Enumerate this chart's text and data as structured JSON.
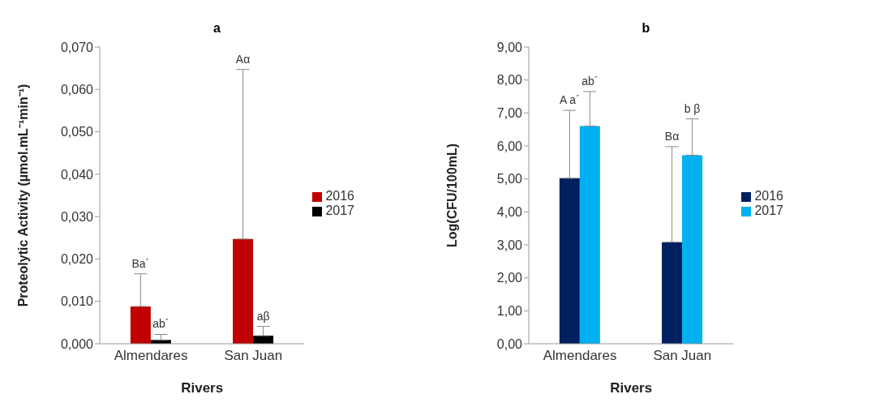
{
  "chart_data": [
    {
      "type": "bar",
      "title": "a",
      "xlabel": "Rivers",
      "ylabel": "Proteolytic Activity (µmol.mL⁻¹min⁻¹)",
      "categories": [
        "Almendares",
        "San Juan"
      ],
      "series": [
        {
          "name": "2016",
          "color": "#c00000",
          "values": [
            0.0088,
            0.0247
          ],
          "errors": [
            [
              0.0088,
              0.0165
            ],
            [
              0.0247,
              0.0647
            ]
          ]
        },
        {
          "name": "2017",
          "color": "#000000",
          "values": [
            0.0009,
            0.0019
          ],
          "errors": [
            [
              0.0009,
              0.0022
            ],
            [
              0.0019,
              0.0041
            ]
          ]
        }
      ],
      "annotations": [
        {
          "text": "Ba´",
          "x": "Almendares",
          "y": 0.0165
        },
        {
          "text": "ab´",
          "x": "Almendares",
          "y": 0.0022
        },
        {
          "text": "Aα",
          "x": "San Juan",
          "y": 0.0647
        },
        {
          "text": "aβ",
          "x": "San Juan",
          "y": 0.0041
        }
      ],
      "ylim": [
        0,
        0.07
      ],
      "yticks": [
        {
          "value": 0,
          "label": "0,000"
        },
        {
          "value": 0.01,
          "label": "0,010"
        },
        {
          "value": 0.02,
          "label": "0,020"
        },
        {
          "value": 0.03,
          "label": "0,030"
        },
        {
          "value": 0.04,
          "label": "0,040"
        },
        {
          "value": 0.05,
          "label": "0,050"
        },
        {
          "value": 0.06,
          "label": "0,060"
        },
        {
          "value": 0.07,
          "label": "0,070"
        }
      ],
      "grid": false,
      "legend": "right"
    },
    {
      "type": "bar",
      "title": "b",
      "xlabel": "Rivers",
      "ylabel": "Log(CFU/100mL)",
      "categories": [
        "Almendares",
        "San Juan"
      ],
      "series": [
        {
          "name": "2016",
          "color": "#002060",
          "values": [
            5.02,
            3.08
          ],
          "errors": [
            [
              5.02,
              7.08
            ],
            [
              3.08,
              5.98
            ]
          ]
        },
        {
          "name": "2017",
          "color": "#00b0f0",
          "values": [
            6.6,
            5.72
          ],
          "errors": [
            [
              6.6,
              7.65
            ],
            [
              5.72,
              6.82
            ]
          ]
        }
      ],
      "annotations": [
        {
          "text": "A a´",
          "x": "Almendares",
          "y": 7.08
        },
        {
          "text": "ab´",
          "x": "Almendares",
          "y": 7.65
        },
        {
          "text": "Bα",
          "x": "San Juan",
          "y": 5.98
        },
        {
          "text": "b β",
          "x": "San Juan",
          "y": 6.82
        }
      ],
      "ylim": [
        0,
        9
      ],
      "yticks": [
        {
          "value": 0,
          "label": "0,00"
        },
        {
          "value": 1,
          "label": "1,00"
        },
        {
          "value": 2,
          "label": "2,00"
        },
        {
          "value": 3,
          "label": "3,00"
        },
        {
          "value": 4,
          "label": "4,00"
        },
        {
          "value": 5,
          "label": "5,00"
        },
        {
          "value": 6,
          "label": "6,00"
        },
        {
          "value": 7,
          "label": "7,00"
        },
        {
          "value": 8,
          "label": "8,00"
        },
        {
          "value": 9,
          "label": "9,00"
        }
      ],
      "grid": false,
      "legend": "right"
    }
  ]
}
